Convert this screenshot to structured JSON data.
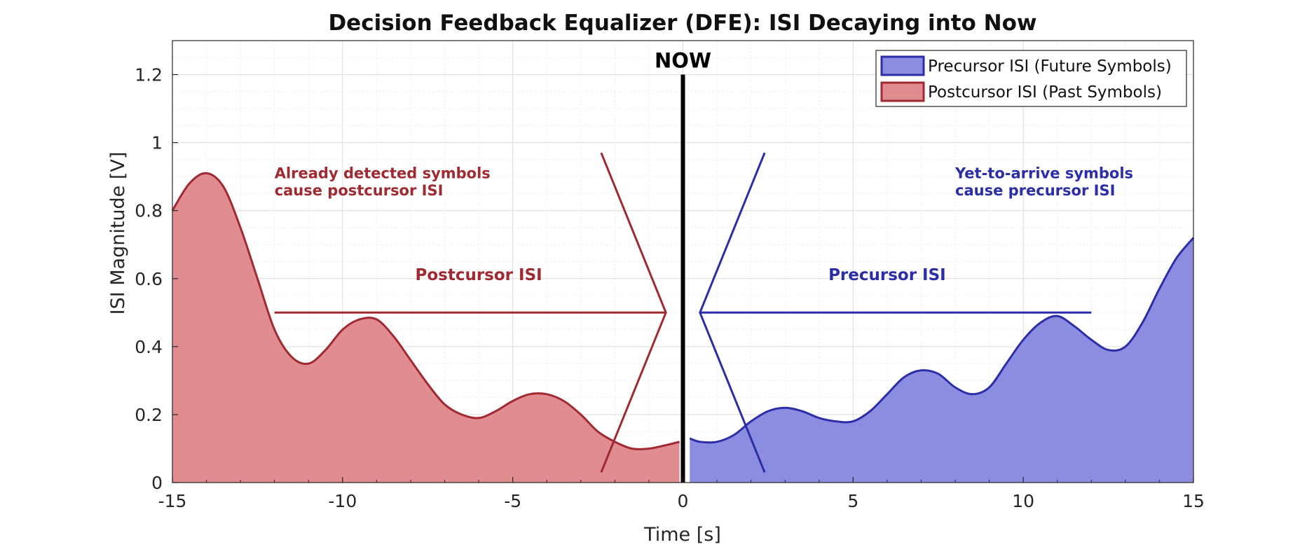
{
  "chart_data": {
    "type": "area",
    "title": "Decision Feedback Equalizer (DFE): ISI Decaying into Now",
    "xlabel": "Time [s]",
    "ylabel": "ISI Magnitude [V]",
    "xlim": [
      -15,
      15
    ],
    "ylim": [
      0,
      1.3
    ],
    "xticks": [
      -15,
      -10,
      -5,
      0,
      5,
      10,
      15
    ],
    "xtick_labels": [
      "-15",
      "-10",
      "-5",
      "0",
      "5",
      "10",
      "15"
    ],
    "yticks": [
      0,
      0.2,
      0.4,
      0.6,
      0.8,
      1,
      1.2
    ],
    "ytick_labels": [
      "0",
      "0.2",
      "0.4",
      "0.6",
      "0.8",
      "1",
      "1.2"
    ],
    "grid": true,
    "minor_grid": true,
    "legend_position": "top-right",
    "series": [
      {
        "name": "Precursor ISI (Future Symbols)",
        "color": "#2b2ea6",
        "fill": "#8c8ce0",
        "x": [
          0.2,
          0.5,
          1.0,
          1.5,
          2.0,
          2.5,
          3.0,
          3.5,
          4.0,
          4.5,
          5.0,
          5.5,
          6.0,
          6.5,
          7.0,
          7.5,
          8.0,
          8.5,
          9.0,
          9.5,
          10.0,
          10.5,
          11.0,
          11.5,
          12.0,
          12.5,
          13.0,
          13.5,
          14.0,
          14.5,
          15.0
        ],
        "y": [
          0.13,
          0.12,
          0.12,
          0.14,
          0.18,
          0.21,
          0.22,
          0.21,
          0.19,
          0.18,
          0.18,
          0.21,
          0.26,
          0.31,
          0.33,
          0.32,
          0.28,
          0.26,
          0.28,
          0.35,
          0.42,
          0.47,
          0.49,
          0.46,
          0.42,
          0.39,
          0.4,
          0.47,
          0.57,
          0.66,
          0.72
        ]
      },
      {
        "name": "Postcursor ISI (Past Symbols)",
        "color": "#a02a32",
        "fill": "#e08c90",
        "x": [
          -15.0,
          -14.5,
          -14.0,
          -13.5,
          -13.0,
          -12.5,
          -12.0,
          -11.5,
          -11.0,
          -10.5,
          -10.0,
          -9.5,
          -9.0,
          -8.5,
          -8.0,
          -7.5,
          -7.0,
          -6.5,
          -6.0,
          -5.5,
          -5.0,
          -4.5,
          -4.0,
          -3.5,
          -3.0,
          -2.5,
          -2.0,
          -1.5,
          -1.0,
          -0.5,
          -0.1
        ],
        "y": [
          0.8,
          0.88,
          0.91,
          0.87,
          0.75,
          0.6,
          0.45,
          0.37,
          0.35,
          0.39,
          0.45,
          0.48,
          0.48,
          0.43,
          0.36,
          0.29,
          0.23,
          0.2,
          0.19,
          0.21,
          0.24,
          0.26,
          0.26,
          0.24,
          0.2,
          0.15,
          0.12,
          0.1,
          0.1,
          0.11,
          0.12
        ]
      }
    ],
    "now_marker": {
      "x": 0,
      "y_top": 1.2,
      "label": "NOW"
    },
    "arrows": [
      {
        "id": "postcursor",
        "color": "#a02a32",
        "shaft": [
          [
            -12,
            0.5
          ],
          [
            -0.5,
            0.5
          ]
        ],
        "head": [
          [
            -2.4,
            0.97
          ],
          [
            -0.5,
            0.5
          ],
          [
            -2.4,
            0.03
          ]
        ]
      },
      {
        "id": "precursor",
        "color": "#2b2ea6",
        "shaft": [
          [
            0.5,
            0.5
          ],
          [
            12,
            0.5
          ]
        ],
        "head": [
          [
            2.4,
            0.97
          ],
          [
            0.5,
            0.5
          ],
          [
            2.4,
            0.03
          ]
        ]
      }
    ],
    "annotations": [
      {
        "id": "ann-postcursor-line1",
        "text": "Already detected symbols",
        "x": -12,
        "y": 0.895,
        "color": "#a02a32",
        "anchor": "start",
        "style": "ann"
      },
      {
        "id": "ann-postcursor-line2",
        "text": "cause postcursor ISI",
        "x": -12,
        "y": 0.845,
        "color": "#a02a32",
        "anchor": "start",
        "style": "ann"
      },
      {
        "id": "ann-precursor-line1",
        "text": "Yet-to-arrive symbols",
        "x": 8,
        "y": 0.895,
        "color": "#2b2ea6",
        "anchor": "start",
        "style": "ann"
      },
      {
        "id": "ann-precursor-line2",
        "text": "cause precursor ISI",
        "x": 8,
        "y": 0.845,
        "color": "#2b2ea6",
        "anchor": "start",
        "style": "ann"
      },
      {
        "id": "ann-postcursor-mid",
        "text": "Postcursor ISI",
        "x": -6,
        "y": 0.595,
        "color": "#a02a32",
        "anchor": "middle",
        "style": "ann-mid"
      },
      {
        "id": "ann-precursor-mid",
        "text": "Precursor ISI",
        "x": 6,
        "y": 0.595,
        "color": "#2b2ea6",
        "anchor": "middle",
        "style": "ann-mid"
      }
    ]
  }
}
